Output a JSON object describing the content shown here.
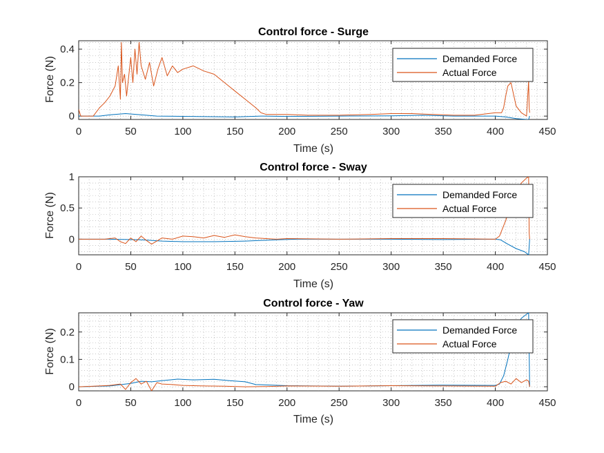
{
  "figure": {
    "background": "#ffffff"
  },
  "colors": {
    "demanded": "#0072BD",
    "actual": "#D95319",
    "axis": "#262626",
    "grid": "#a0a0a0"
  },
  "chart_data": [
    {
      "type": "line",
      "title": "Control force - Surge",
      "xlabel": "Time (s)",
      "ylabel": "Force (N)",
      "xlim": [
        0,
        450
      ],
      "ylim": [
        -0.02,
        0.45
      ],
      "xticks": [
        0,
        50,
        100,
        150,
        200,
        250,
        300,
        350,
        400,
        450
      ],
      "yticks": [
        0,
        0.2,
        0.4
      ],
      "ytick_labels": [
        "0",
        "0.2",
        "0.4"
      ],
      "grid": "minor dotted",
      "legend": "top-right",
      "series": [
        {
          "name": "Demanded Force",
          "color": "#0072BD",
          "x": [
            0,
            20,
            30,
            45,
            60,
            75,
            150,
            175,
            200,
            250,
            300,
            330,
            360,
            400,
            410,
            420,
            430,
            432,
            433
          ],
          "y": [
            0,
            0,
            0.008,
            0.015,
            0.008,
            0,
            -0.005,
            0,
            -0.002,
            0,
            0.002,
            0.005,
            0,
            0,
            -0.005,
            -0.015,
            -0.02,
            -0.02,
            0
          ]
        },
        {
          "name": "Actual Force",
          "color": "#D95319",
          "x": [
            0,
            2,
            4,
            14,
            20,
            25,
            30,
            35,
            38,
            40,
            41,
            42,
            44,
            46,
            50,
            52,
            54,
            56,
            58,
            60,
            64,
            68,
            72,
            76,
            80,
            85,
            90,
            95,
            100,
            110,
            120,
            130,
            140,
            150,
            160,
            170,
            175,
            180,
            190,
            200,
            220,
            250,
            280,
            300,
            320,
            340,
            360,
            380,
            400,
            406,
            408,
            410,
            412,
            415,
            420,
            425,
            430,
            432,
            432.5,
            433
          ],
          "y": [
            0.04,
            0,
            0,
            0,
            0.05,
            0.08,
            0.12,
            0.18,
            0.3,
            0.1,
            0.44,
            0.2,
            0.25,
            0.12,
            0.35,
            0.2,
            0.4,
            0.25,
            0.44,
            0.3,
            0.22,
            0.32,
            0.18,
            0.28,
            0.35,
            0.24,
            0.3,
            0.26,
            0.28,
            0.3,
            0.27,
            0.25,
            0.2,
            0.15,
            0.1,
            0.05,
            0.02,
            0.01,
            0.01,
            0.01,
            0.005,
            0.005,
            0.01,
            0.015,
            0.015,
            0.01,
            0.005,
            0.005,
            0.02,
            0.02,
            0.05,
            0.12,
            0.18,
            0.2,
            0.06,
            0.02,
            0,
            0.21,
            0.05,
            0.02
          ]
        }
      ]
    },
    {
      "type": "line",
      "title": "Control force - Sway",
      "xlabel": "Time (s)",
      "ylabel": "Force (N)",
      "xlim": [
        0,
        450
      ],
      "ylim": [
        -0.25,
        1
      ],
      "xticks": [
        0,
        50,
        100,
        150,
        200,
        250,
        300,
        350,
        400,
        450
      ],
      "yticks": [
        0,
        0.5,
        1
      ],
      "ytick_labels": [
        "0",
        "0.5",
        "1"
      ],
      "grid": "minor dotted",
      "legend": "top-right",
      "series": [
        {
          "name": "Demanded Force",
          "color": "#0072BD",
          "x": [
            0,
            30,
            60,
            80,
            100,
            130,
            160,
            190,
            210,
            250,
            300,
            350,
            400,
            405,
            412,
            420,
            428,
            432,
            433
          ],
          "y": [
            0,
            0,
            -0.01,
            -0.03,
            -0.04,
            -0.04,
            -0.03,
            -0.01,
            0,
            0,
            0,
            -0.005,
            0,
            -0.01,
            -0.08,
            -0.15,
            -0.2,
            -0.25,
            0
          ]
        },
        {
          "name": "Actual Force",
          "color": "#D95319",
          "x": [
            0,
            25,
            35,
            40,
            45,
            50,
            55,
            60,
            65,
            70,
            80,
            90,
            100,
            110,
            120,
            130,
            140,
            150,
            160,
            170,
            180,
            190,
            200,
            250,
            300,
            350,
            400,
            404,
            410,
            415,
            420,
            425,
            430,
            432,
            432.5,
            433
          ],
          "y": [
            0,
            0,
            0.02,
            -0.04,
            -0.07,
            0.02,
            -0.04,
            0.05,
            -0.02,
            -0.08,
            0.02,
            0,
            0.05,
            0.04,
            0.02,
            0.06,
            0.03,
            0.07,
            0.04,
            0.02,
            0.01,
            0,
            0.01,
            0,
            0.01,
            0.01,
            0,
            0.05,
            0.3,
            0.55,
            0.75,
            0.9,
            0.98,
            1.0,
            0.1,
            0
          ]
        }
      ]
    },
    {
      "type": "line",
      "title": "Control force - Yaw",
      "xlabel": "Time (s)",
      "ylabel": "Force (N)",
      "xlim": [
        0,
        450
      ],
      "ylim": [
        -0.015,
        0.27
      ],
      "xticks": [
        0,
        50,
        100,
        150,
        200,
        250,
        300,
        350,
        400,
        450
      ],
      "yticks": [
        0,
        0.1,
        0.2
      ],
      "ytick_labels": [
        "0",
        "0.1",
        "0.2"
      ],
      "grid": "minor dotted",
      "legend": "top-right",
      "series": [
        {
          "name": "Demanded Force",
          "color": "#0072BD",
          "x": [
            0,
            30,
            50,
            60,
            70,
            80,
            95,
            110,
            130,
            145,
            160,
            170,
            200,
            250,
            300,
            350,
            400,
            404,
            408,
            412,
            416,
            420,
            425,
            430,
            432,
            433
          ],
          "y": [
            0,
            0.003,
            0.012,
            0.02,
            0.018,
            0.022,
            0.028,
            0.025,
            0.027,
            0.022,
            0.018,
            0.008,
            0.004,
            0.002,
            0.004,
            0.006,
            0.005,
            0.01,
            0.04,
            0.1,
            0.17,
            0.22,
            0.25,
            0.265,
            0.27,
            0
          ]
        },
        {
          "name": "Actual Force",
          "color": "#D95319",
          "x": [
            0,
            20,
            30,
            40,
            45,
            50,
            55,
            60,
            65,
            70,
            75,
            80,
            90,
            100,
            120,
            140,
            160,
            180,
            200,
            250,
            300,
            350,
            400,
            405,
            410,
            415,
            420,
            425,
            430,
            432,
            433
          ],
          "y": [
            0,
            0.003,
            0.005,
            0.01,
            -0.01,
            0.015,
            0.03,
            0.01,
            0.02,
            -0.015,
            0.015,
            0.01,
            0.008,
            0.005,
            0.003,
            0.002,
            0,
            0.001,
            0.003,
            0.002,
            0.004,
            0.003,
            0.002,
            0.015,
            0.02,
            0.01,
            0.03,
            0.015,
            0.025,
            0.02,
            0
          ]
        }
      ]
    }
  ]
}
